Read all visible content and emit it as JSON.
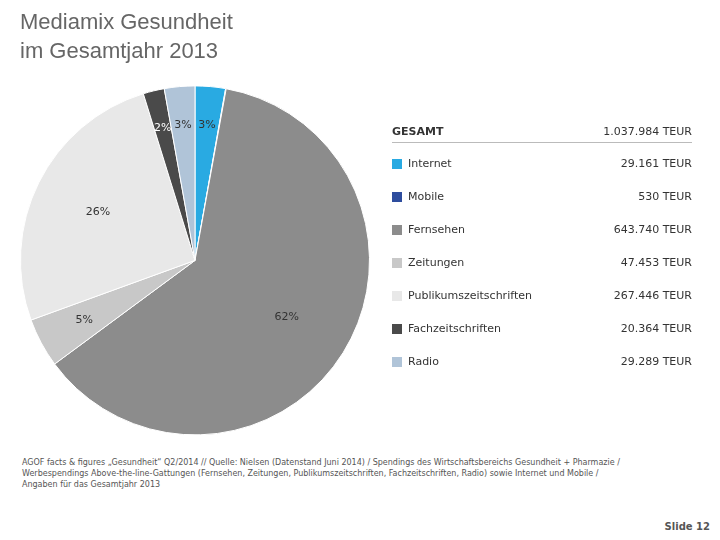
{
  "chart_data": {
    "type": "pie",
    "title": "Mediamix Gesundheit",
    "subtitle": "im Gesamtjahr 2013",
    "categories": [
      "Internet",
      "Mobile",
      "Fernsehen",
      "Zeitungen",
      "Publikumszeitschriften",
      "Fachzeitschriften",
      "Radio"
    ],
    "values": [
      29161,
      530,
      643740,
      47453,
      267446,
      20364,
      29289
    ],
    "value_labels": [
      "29.161 TEUR",
      "530 TEUR",
      "643.740 TEUR",
      "47.453 TEUR",
      "267.446 TEUR",
      "20.364 TEUR",
      "29.289 TEUR"
    ],
    "percentages": [
      3,
      null,
      62,
      5,
      26,
      2,
      3
    ],
    "percentage_labels": [
      "3%",
      null,
      "62%",
      "5%",
      "26%",
      "2%",
      "3%"
    ],
    "colors": [
      "#29aae2",
      "#2e4d9e",
      "#8c8c8c",
      "#c8c8c8",
      "#e8e8e8",
      "#4a4a4a",
      "#b0c4d8"
    ],
    "total": {
      "name": "GESAMT",
      "value": 1037984,
      "value_label": "1.037.984 TEUR"
    },
    "data_labels": true,
    "legend": "right",
    "annotations": [
      "AGOF facts & figures „Gesundheit“ Q2/2014 // Quelle: Nielsen (Datenstand Juni 2014) / Spendings des Wirtschaftsbereichs Gesundheit + Pharmazie / Werbespendings Above-the-line-Gattungen (Fernsehen, Zeitungen, Publikumszeitschriften, Fachzeitschriften, Radio) sowie Internet und Mobile / Angaben für das Gesamtjahr 2013",
      "Slide 12"
    ]
  }
}
